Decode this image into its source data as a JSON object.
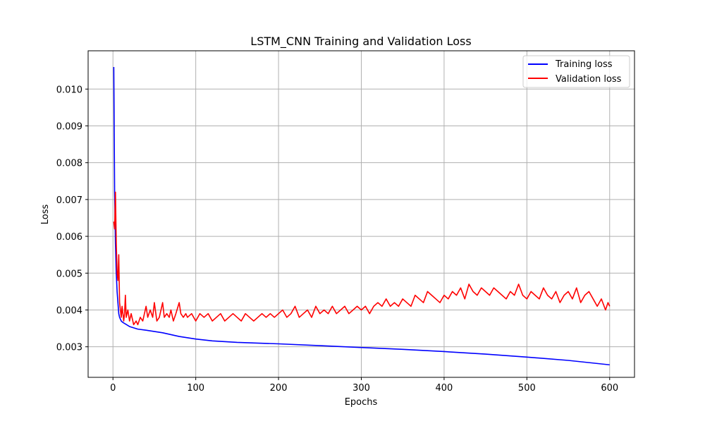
{
  "chart_data": {
    "type": "line",
    "title": "LSTM_CNN Training and Validation Loss",
    "xlabel": "Epochs",
    "ylabel": "Loss",
    "xlim": [
      -30,
      630
    ],
    "ylim": [
      0.00217,
      0.01104
    ],
    "xticks": [
      0,
      100,
      200,
      300,
      400,
      500,
      600
    ],
    "yticks": [
      0.003,
      0.004,
      0.005,
      0.006,
      0.007,
      0.008,
      0.009,
      0.01
    ],
    "ytick_labels": [
      "0.003",
      "0.004",
      "0.005",
      "0.006",
      "0.007",
      "0.008",
      "0.009",
      "0.010"
    ],
    "grid": true,
    "legend_position": "top-right",
    "series": [
      {
        "name": "Training loss",
        "color": "#0000ff",
        "x": [
          1,
          2,
          3,
          4,
          5,
          6,
          7,
          8,
          10,
          12,
          15,
          20,
          30,
          40,
          60,
          80,
          100,
          120,
          150,
          200,
          250,
          300,
          350,
          400,
          450,
          500,
          550,
          600
        ],
        "values": [
          0.0106,
          0.0072,
          0.0058,
          0.005,
          0.0045,
          0.0042,
          0.0039,
          0.0038,
          0.0037,
          0.00366,
          0.00362,
          0.00355,
          0.00348,
          0.00345,
          0.00338,
          0.00328,
          0.00321,
          0.00316,
          0.00312,
          0.00308,
          0.00303,
          0.00298,
          0.00293,
          0.00287,
          0.0028,
          0.00272,
          0.00263,
          0.00251
        ]
      },
      {
        "name": "Validation loss",
        "color": "#ff0000",
        "x": [
          1,
          2,
          3,
          4,
          5,
          6,
          7,
          8,
          9,
          10,
          11,
          12,
          13,
          14,
          15,
          16,
          18,
          20,
          22,
          25,
          28,
          30,
          33,
          36,
          40,
          42,
          45,
          48,
          50,
          53,
          56,
          60,
          62,
          65,
          68,
          70,
          73,
          76,
          80,
          82,
          85,
          88,
          90,
          95,
          100,
          105,
          110,
          115,
          120,
          125,
          130,
          135,
          140,
          145,
          150,
          155,
          160,
          165,
          170,
          175,
          180,
          185,
          190,
          195,
          200,
          205,
          210,
          215,
          220,
          225,
          230,
          235,
          240,
          245,
          250,
          255,
          260,
          265,
          270,
          275,
          280,
          285,
          290,
          295,
          300,
          305,
          310,
          315,
          320,
          325,
          330,
          335,
          340,
          345,
          350,
          355,
          360,
          365,
          370,
          375,
          380,
          385,
          390,
          395,
          400,
          405,
          410,
          415,
          420,
          425,
          430,
          435,
          440,
          445,
          450,
          455,
          460,
          465,
          470,
          475,
          480,
          485,
          490,
          495,
          500,
          505,
          510,
          515,
          520,
          525,
          530,
          535,
          540,
          545,
          550,
          555,
          560,
          565,
          570,
          575,
          580,
          585,
          590,
          595,
          598,
          600
        ],
        "values": [
          0.0064,
          0.0062,
          0.0072,
          0.0058,
          0.005,
          0.0048,
          0.0055,
          0.0042,
          0.004,
          0.0038,
          0.0041,
          0.0039,
          0.0037,
          0.0039,
          0.0044,
          0.0038,
          0.004,
          0.0037,
          0.0039,
          0.0036,
          0.0037,
          0.0036,
          0.0038,
          0.0037,
          0.0041,
          0.0038,
          0.004,
          0.0038,
          0.0042,
          0.0037,
          0.0038,
          0.0042,
          0.0038,
          0.0039,
          0.0038,
          0.004,
          0.0037,
          0.0039,
          0.0042,
          0.0039,
          0.0038,
          0.0039,
          0.0038,
          0.0039,
          0.0037,
          0.0039,
          0.0038,
          0.0039,
          0.0037,
          0.0038,
          0.0039,
          0.0037,
          0.0038,
          0.0039,
          0.0038,
          0.0037,
          0.0039,
          0.0038,
          0.0037,
          0.0038,
          0.0039,
          0.0038,
          0.0039,
          0.0038,
          0.0039,
          0.004,
          0.0038,
          0.0039,
          0.0041,
          0.0038,
          0.0039,
          0.004,
          0.0038,
          0.0041,
          0.0039,
          0.004,
          0.0039,
          0.0041,
          0.0039,
          0.004,
          0.0041,
          0.0039,
          0.004,
          0.0041,
          0.004,
          0.0041,
          0.0039,
          0.0041,
          0.0042,
          0.0041,
          0.0043,
          0.0041,
          0.0042,
          0.0041,
          0.0043,
          0.0042,
          0.0041,
          0.0044,
          0.0043,
          0.0042,
          0.0045,
          0.0044,
          0.0043,
          0.0042,
          0.0044,
          0.0043,
          0.0045,
          0.0044,
          0.0046,
          0.0043,
          0.0047,
          0.0045,
          0.0044,
          0.0046,
          0.0045,
          0.0044,
          0.0046,
          0.0045,
          0.0044,
          0.0043,
          0.0045,
          0.0044,
          0.0047,
          0.0044,
          0.0043,
          0.0045,
          0.0044,
          0.0043,
          0.0046,
          0.0044,
          0.0043,
          0.0045,
          0.0042,
          0.0044,
          0.0045,
          0.0043,
          0.0046,
          0.0042,
          0.0044,
          0.0045,
          0.0043,
          0.0041,
          0.0043,
          0.004,
          0.0042,
          0.0041
        ]
      }
    ]
  }
}
